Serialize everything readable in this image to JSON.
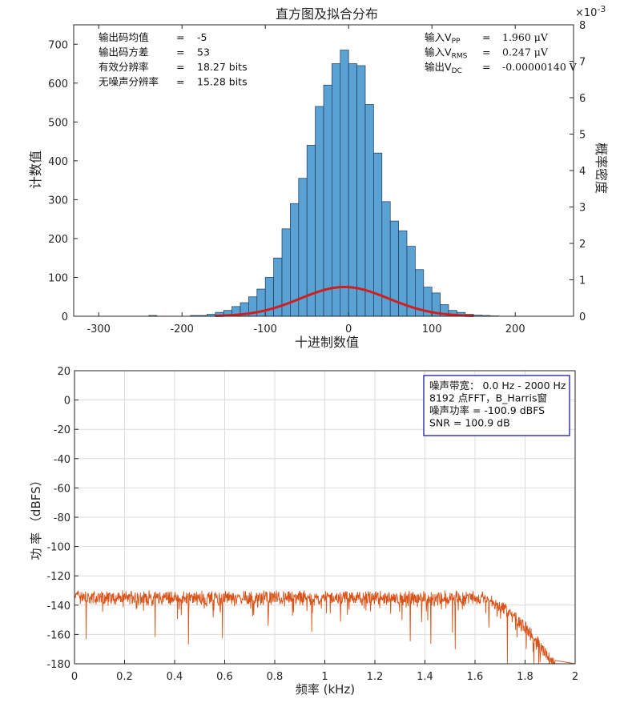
{
  "colors": {
    "bar_fill": "#5aa2d4",
    "bar_edge": "#1f3a5a",
    "fit_curve": "#d11f1f",
    "spectrum": "#d95319",
    "grid": "#dcdcdc",
    "axis": "#262626",
    "legend_border": "#1a1aa8"
  },
  "chart_data": [
    {
      "type": "bar",
      "title": "直方图及拟合分布",
      "xlabel": "十进制数值",
      "ylabel": "计数值",
      "ylabel_right": "概率密度",
      "right_axis_exponent": "×10",
      "right_axis_exponent_power": "-3",
      "xlim": [
        -330,
        270
      ],
      "ylim": [
        0,
        750
      ],
      "ylim_right": [
        0,
        0.008
      ],
      "xticks": [
        -300,
        -200,
        -100,
        0,
        100,
        200
      ],
      "xtick_labels": [
        "-300",
        "-200",
        "-100",
        "0",
        "100",
        "200"
      ],
      "yticks": [
        0,
        100,
        200,
        300,
        400,
        500,
        600,
        700
      ],
      "ytick_labels": [
        "0",
        "100",
        "200",
        "300",
        "400",
        "500",
        "600",
        "700"
      ],
      "yticks_right": [
        0,
        1,
        2,
        3,
        4,
        5,
        6,
        7,
        8
      ],
      "ytick_right_labels": [
        "0",
        "1",
        "2",
        "3",
        "4",
        "5",
        "6",
        "7",
        "8"
      ],
      "grid": false,
      "bin_edges": [
        -240,
        -230,
        -220,
        -210,
        -200,
        -190,
        -180,
        -170,
        -160,
        -150,
        -140,
        -130,
        -120,
        -110,
        -100,
        -90,
        -80,
        -70,
        -60,
        -50,
        -40,
        -30,
        -20,
        -10,
        0,
        10,
        20,
        30,
        40,
        50,
        60,
        70,
        80,
        90,
        100,
        110,
        120,
        130,
        140,
        150,
        160,
        170,
        180
      ],
      "counts": [
        2,
        0,
        0,
        0,
        0,
        2,
        2,
        5,
        10,
        15,
        25,
        35,
        50,
        70,
        100,
        150,
        225,
        290,
        355,
        440,
        540,
        595,
        650,
        685,
        650,
        645,
        545,
        420,
        295,
        245,
        220,
        180,
        120,
        75,
        60,
        30,
        15,
        10,
        5,
        3,
        2,
        1
      ],
      "fit": {
        "distribution": "normal",
        "mean": -5,
        "std": 53,
        "count_scale": 10
      },
      "annotations_left": [
        {
          "label": "输出码均值",
          "eq": "=",
          "value": "-5"
        },
        {
          "label": "输出码方差",
          "eq": "=",
          "value": "53"
        },
        {
          "label": "有效分辨率",
          "eq": "=",
          "value": "18.27 bits"
        },
        {
          "label": "无噪声分辨率",
          "eq": "=",
          "value": "15.28 bits"
        }
      ],
      "annotations_right": [
        {
          "label_prefix": "输入V",
          "label_sub": "PP",
          "eq": "=",
          "value": "1.960 μV"
        },
        {
          "label_prefix": "输入V",
          "label_sub": "RMS",
          "eq": "=",
          "value": "0.247 μV"
        },
        {
          "label_prefix": "输出V",
          "label_sub": "DC",
          "eq": "=",
          "value": "-0.00000140 V"
        }
      ]
    },
    {
      "type": "line",
      "title": "",
      "xlabel": "频率 (kHz)",
      "ylabel": "功 率 （dBFS）",
      "xlim": [
        0,
        2
      ],
      "ylim": [
        -180,
        20
      ],
      "xticks": [
        0,
        0.2,
        0.4,
        0.6,
        0.8,
        1,
        1.2,
        1.4,
        1.6,
        1.8,
        2
      ],
      "xtick_labels": [
        "0",
        "0.2",
        "0.4",
        "0.6",
        "0.8",
        "1",
        "1.2",
        "1.4",
        "1.6",
        "1.8",
        "2"
      ],
      "yticks": [
        -180,
        -160,
        -140,
        -120,
        -100,
        -80,
        -60,
        -40,
        -20,
        0,
        20
      ],
      "ytick_labels": [
        "-180",
        "-160",
        "-140",
        "-120",
        "-100",
        "-80",
        "-60",
        "-40",
        "-20",
        "0",
        "20"
      ],
      "grid": true,
      "legend_position": "top-right",
      "legend_lines": [
        "噪声带宽：  0.0 Hz - 2000 Hz",
        "8192 点FFT，B_Harris窗",
        "噪声功率 = -100.9 dBFS",
        "SNR = 100.9 dB"
      ],
      "series": [
        {
          "points": 1400,
          "noise_floor_db": -135,
          "ripple_db": 4,
          "dip_min_db": -175,
          "rolloff_start_khz": 1.6,
          "rolloff_end_khz": 1.9,
          "floor_db": -180
        }
      ]
    }
  ]
}
